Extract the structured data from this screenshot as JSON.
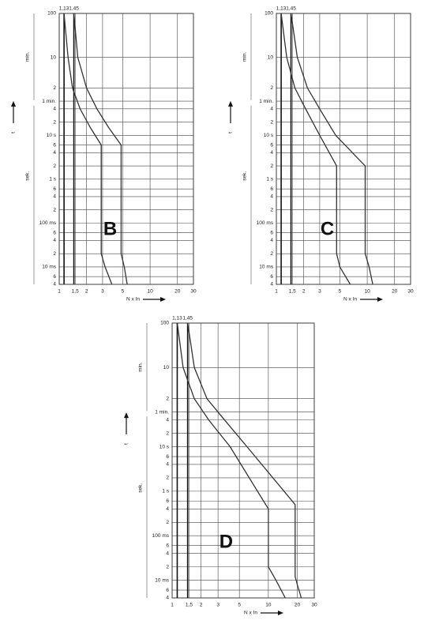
{
  "chart_data": [
    {
      "type": "line",
      "letter": "B",
      "xlabel": "N x In",
      "ylabel": "t",
      "y_groups": [
        "min.",
        "sek."
      ],
      "xscale": "log",
      "yscale": "log",
      "grid": true,
      "xlim": [
        1,
        30
      ],
      "ylim": [
        0.004,
        6000
      ],
      "xticks": [
        1,
        {
          "value": 1.5,
          "label": "1,5"
        },
        2,
        3,
        5,
        10,
        20,
        30
      ],
      "yticks": [
        {
          "value": 6000,
          "label": "100"
        },
        {
          "value": 600,
          "label": "10"
        },
        {
          "value": 120,
          "label": "2"
        },
        {
          "value": 60,
          "label": "1 min."
        },
        {
          "value": 40,
          "label": "4"
        },
        {
          "value": 20,
          "label": "2"
        },
        {
          "value": 10,
          "label": "10 s"
        },
        6,
        4,
        2,
        {
          "value": 1,
          "label": "1 s"
        },
        {
          "value": 0.6,
          "label": "6"
        },
        {
          "value": 0.4,
          "label": "4"
        },
        {
          "value": 0.2,
          "label": "2"
        },
        {
          "value": 0.1,
          "label": "100 ms"
        },
        {
          "value": 0.06,
          "label": "6"
        },
        {
          "value": 0.04,
          "label": "4"
        },
        {
          "value": 0.02,
          "label": "2"
        },
        {
          "value": 0.01,
          "label": "10 ms"
        },
        {
          "value": 0.006,
          "label": "6"
        },
        {
          "value": 0.004,
          "label": "4"
        }
      ],
      "vlines": [
        {
          "value": 1.13,
          "label": "1,13"
        },
        {
          "value": 1.45,
          "label": "1,45"
        }
      ],
      "series": [
        {
          "color": "#333333",
          "x": [
            1.13,
            1.25,
            1.4,
            1.7,
            2.2,
            2.9,
            2.9,
            3.2,
            3.8
          ],
          "values": [
            6000,
            600,
            120,
            40,
            15,
            6,
            0.02,
            0.01,
            0.004
          ]
        },
        {
          "color": "#333333",
          "x": [
            1.45,
            1.6,
            2,
            2.6,
            3.5,
            4.8,
            4.8,
            5.2,
            5.6
          ],
          "values": [
            6000,
            600,
            120,
            40,
            15,
            6,
            0.02,
            0.01,
            0.004
          ]
        }
      ]
    },
    {
      "type": "line",
      "letter": "C",
      "xlabel": "N x In",
      "ylabel": "t",
      "y_groups": [
        "min.",
        "sek."
      ],
      "xscale": "log",
      "yscale": "log",
      "grid": true,
      "xlim": [
        1,
        30
      ],
      "ylim": [
        0.004,
        6000
      ],
      "xticks": [
        1,
        {
          "value": 1.5,
          "label": "1,5"
        },
        2,
        3,
        5,
        10,
        20,
        30
      ],
      "yticks": [
        {
          "value": 6000,
          "label": "100"
        },
        {
          "value": 600,
          "label": "10"
        },
        {
          "value": 120,
          "label": "2"
        },
        {
          "value": 60,
          "label": "1 min."
        },
        {
          "value": 40,
          "label": "4"
        },
        {
          "value": 20,
          "label": "2"
        },
        {
          "value": 10,
          "label": "10 s"
        },
        6,
        4,
        2,
        {
          "value": 1,
          "label": "1 s"
        },
        {
          "value": 0.6,
          "label": "6"
        },
        {
          "value": 0.4,
          "label": "4"
        },
        {
          "value": 0.2,
          "label": "2"
        },
        {
          "value": 0.1,
          "label": "100 ms"
        },
        {
          "value": 0.06,
          "label": "6"
        },
        {
          "value": 0.04,
          "label": "4"
        },
        {
          "value": 0.02,
          "label": "2"
        },
        {
          "value": 0.01,
          "label": "10 ms"
        },
        {
          "value": 0.006,
          "label": "6"
        },
        {
          "value": 0.004,
          "label": "4"
        }
      ],
      "vlines": [
        {
          "value": 1.13,
          "label": "1,13"
        },
        {
          "value": 1.45,
          "label": "1,45"
        }
      ],
      "series": [
        {
          "color": "#333333",
          "x": [
            1.13,
            1.3,
            1.6,
            2.1,
            3,
            4.6,
            4.6,
            5,
            6.5
          ],
          "values": [
            6000,
            600,
            120,
            40,
            10,
            2,
            0.02,
            0.01,
            0.004
          ]
        },
        {
          "color": "#333333",
          "x": [
            1.45,
            1.7,
            2.2,
            3,
            4.5,
            9.5,
            9.5,
            10.5,
            11.5
          ],
          "values": [
            6000,
            600,
            120,
            40,
            10,
            2,
            0.02,
            0.01,
            0.004
          ]
        }
      ]
    },
    {
      "type": "line",
      "letter": "D",
      "xlabel": "N x In",
      "ylabel": "t",
      "y_groups": [
        "min.",
        "sek."
      ],
      "xscale": "log",
      "yscale": "log",
      "grid": true,
      "xlim": [
        1,
        30
      ],
      "ylim": [
        0.004,
        6000
      ],
      "xticks": [
        1,
        {
          "value": 1.5,
          "label": "1,5"
        },
        2,
        3,
        5,
        10,
        20,
        30
      ],
      "yticks": [
        {
          "value": 6000,
          "label": "100"
        },
        {
          "value": 600,
          "label": "10"
        },
        {
          "value": 120,
          "label": "2"
        },
        {
          "value": 60,
          "label": "1 min."
        },
        {
          "value": 40,
          "label": "4"
        },
        {
          "value": 20,
          "label": "2"
        },
        {
          "value": 10,
          "label": "10 s"
        },
        6,
        4,
        2,
        {
          "value": 1,
          "label": "1 s"
        },
        {
          "value": 0.6,
          "label": "6"
        },
        {
          "value": 0.4,
          "label": "4"
        },
        {
          "value": 0.2,
          "label": "2"
        },
        {
          "value": 0.1,
          "label": "100 ms"
        },
        {
          "value": 0.06,
          "label": "6"
        },
        {
          "value": 0.04,
          "label": "4"
        },
        {
          "value": 0.02,
          "label": "2"
        },
        {
          "value": 0.01,
          "label": "10 ms"
        },
        {
          "value": 0.006,
          "label": "6"
        },
        {
          "value": 0.004,
          "label": "4"
        }
      ],
      "vlines": [
        {
          "value": 1.13,
          "label": "1,13"
        },
        {
          "value": 1.45,
          "label": "1,45"
        }
      ],
      "series": [
        {
          "color": "#333333",
          "x": [
            1.13,
            1.3,
            1.7,
            2.4,
            4,
            10,
            10,
            12,
            15
          ],
          "values": [
            6000,
            600,
            120,
            40,
            10,
            0.4,
            0.02,
            0.01,
            0.004
          ]
        },
        {
          "color": "#333333",
          "x": [
            1.45,
            1.7,
            2.3,
            3.5,
            6,
            19,
            19,
            20,
            22
          ],
          "values": [
            6000,
            600,
            120,
            40,
            10,
            0.5,
            0.012,
            0.008,
            0.004
          ]
        }
      ]
    }
  ]
}
